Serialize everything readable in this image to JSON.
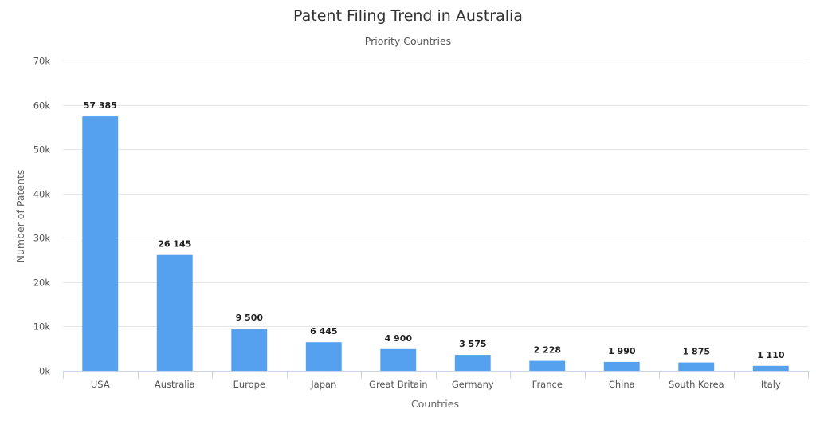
{
  "chart_data": {
    "type": "bar",
    "title": "Patent Filing Trend in Australia",
    "subtitle": "Priority Countries",
    "xlabel": "Countries",
    "ylabel": "Number of Patents",
    "categories": [
      "USA",
      "Australia",
      "Europe",
      "Japan",
      "Great Britain",
      "Germany",
      "France",
      "China",
      "South Korea",
      "Italy"
    ],
    "values": [
      57385,
      26145,
      9500,
      6445,
      4900,
      3575,
      2228,
      1990,
      1875,
      1110
    ],
    "data_labels": [
      "57 385",
      "26 145",
      "9 500",
      "6 445",
      "4 900",
      "3 575",
      "2 228",
      "1 990",
      "1 875",
      "1 110"
    ],
    "ylim": [
      0,
      70000
    ],
    "yticks": [
      0,
      10000,
      20000,
      30000,
      40000,
      50000,
      60000,
      70000
    ],
    "ytick_labels": [
      "0k",
      "10k",
      "20k",
      "30k",
      "40k",
      "50k",
      "60k",
      "70k"
    ],
    "grid": true,
    "legend": "none",
    "bar_color": "#55a1ef"
  }
}
